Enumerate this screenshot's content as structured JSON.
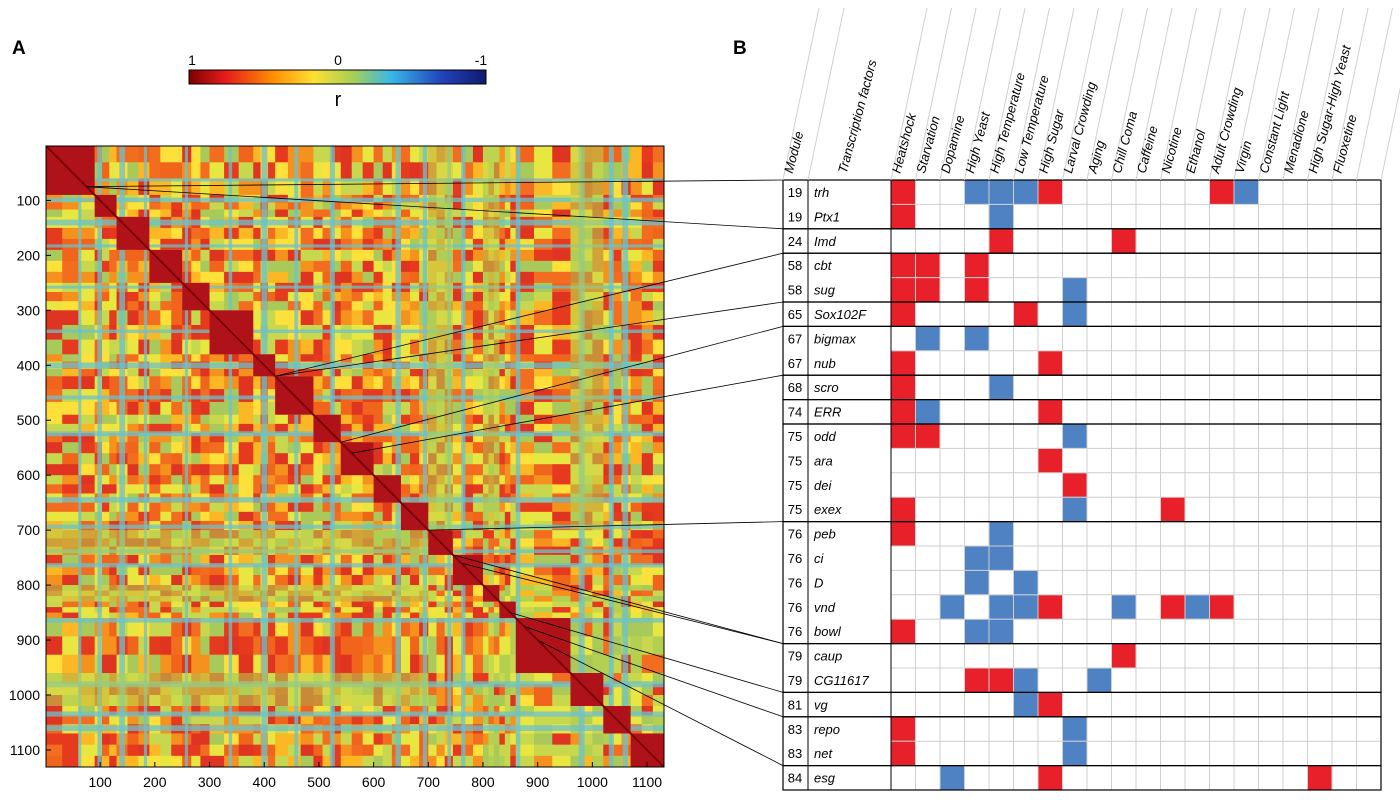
{
  "panel_a_label": "A",
  "panel_b_label": "B",
  "colorbar": {
    "label": "r",
    "tick_labels": [
      "1",
      "0",
      "-1"
    ],
    "range": [
      1,
      -1
    ]
  },
  "chart_data": [
    {
      "type": "heatmap",
      "title": "",
      "xlabel": "",
      "ylabel": "",
      "xlim": [
        1,
        1131
      ],
      "ylim": [
        1,
        1131
      ],
      "x_ticks": [
        100,
        200,
        300,
        400,
        500,
        600,
        700,
        800,
        900,
        1000,
        1100
      ],
      "y_ticks": [
        100,
        200,
        300,
        400,
        500,
        600,
        700,
        800,
        900,
        1000,
        1100
      ],
      "colormap": "jet reversed (1 = dark red, 0 = yellow/green, -1 = dark blue)",
      "diagonal_blocks": [
        [
          1,
          90
        ],
        [
          90,
          130
        ],
        [
          130,
          190
        ],
        [
          190,
          250
        ],
        [
          250,
          300
        ],
        [
          300,
          380
        ],
        [
          380,
          420
        ],
        [
          420,
          490
        ],
        [
          490,
          540
        ],
        [
          540,
          600
        ],
        [
          600,
          650
        ],
        [
          650,
          700
        ],
        [
          700,
          745
        ],
        [
          745,
          800
        ],
        [
          800,
          830
        ],
        [
          830,
          860
        ],
        [
          860,
          960
        ],
        [
          960,
          1020
        ],
        [
          1020,
          1070
        ],
        [
          1070,
          1131
        ]
      ]
    },
    {
      "type": "table",
      "columns": [
        "Module",
        "Transcription factors",
        "Heatshock",
        "Starvation",
        "Dopamine",
        "High Yeast",
        "High Temperature",
        "Low Temperature",
        "High Sugar",
        "Larval Crowding",
        "Aging",
        "Chill Coma",
        "Caffeine",
        "Nicotine",
        "Ethanol",
        "Adult Crowding",
        "Virgin",
        "Constant Light",
        "Menadione",
        "High Sugar-High Yeast",
        "Fluoxetine"
      ],
      "legend": {
        "red": "#e8202a",
        "blue": "#4f82c3"
      },
      "rows": [
        {
          "module": "19",
          "tf": "trh",
          "red": [
            0,
            6,
            13
          ],
          "blue": [
            3,
            4,
            5,
            14
          ]
        },
        {
          "module": "19",
          "tf": "Ptx1",
          "red": [
            0
          ],
          "blue": [
            4
          ]
        },
        {
          "module": "24",
          "tf": "Imd",
          "red": [
            4,
            9
          ],
          "blue": []
        },
        {
          "module": "58",
          "tf": "cbt",
          "red": [
            0,
            1,
            3
          ],
          "blue": []
        },
        {
          "module": "58",
          "tf": "sug",
          "red": [
            0,
            1,
            3
          ],
          "blue": [
            7
          ]
        },
        {
          "module": "65",
          "tf": "Sox102F",
          "red": [
            0,
            5
          ],
          "blue": [
            7
          ]
        },
        {
          "module": "67",
          "tf": "bigmax",
          "red": [],
          "blue": [
            1,
            3
          ]
        },
        {
          "module": "67",
          "tf": "nub",
          "red": [
            0,
            6
          ],
          "blue": []
        },
        {
          "module": "68",
          "tf": "scro",
          "red": [
            0
          ],
          "blue": [
            4
          ]
        },
        {
          "module": "74",
          "tf": "ERR",
          "red": [
            0,
            6
          ],
          "blue": [
            1
          ]
        },
        {
          "module": "75",
          "tf": "odd",
          "red": [
            0,
            1
          ],
          "blue": [
            7
          ]
        },
        {
          "module": "75",
          "tf": "ara",
          "red": [
            6
          ],
          "blue": []
        },
        {
          "module": "75",
          "tf": "dei",
          "red": [
            7
          ],
          "blue": []
        },
        {
          "module": "75",
          "tf": "exex",
          "red": [
            0,
            11
          ],
          "blue": [
            7
          ]
        },
        {
          "module": "76",
          "tf": "peb",
          "red": [
            0
          ],
          "blue": [
            4
          ]
        },
        {
          "module": "76",
          "tf": "ci",
          "red": [],
          "blue": [
            3,
            4
          ]
        },
        {
          "module": "76",
          "tf": "D",
          "red": [],
          "blue": [
            3,
            5
          ]
        },
        {
          "module": "76",
          "tf": "vnd",
          "red": [
            6,
            11,
            13
          ],
          "blue": [
            2,
            4,
            5,
            9,
            12
          ]
        },
        {
          "module": "76",
          "tf": "bowl",
          "red": [
            0
          ],
          "blue": [
            3,
            4
          ]
        },
        {
          "module": "79",
          "tf": "caup",
          "red": [
            9
          ],
          "blue": []
        },
        {
          "module": "79",
          "tf": "CG11617",
          "red": [
            3,
            4
          ],
          "blue": [
            5,
            8
          ]
        },
        {
          "module": "81",
          "tf": "vg",
          "red": [
            6
          ],
          "blue": [
            5
          ]
        },
        {
          "module": "83",
          "tf": "repo",
          "red": [
            0
          ],
          "blue": [
            7
          ]
        },
        {
          "module": "83",
          "tf": "net",
          "red": [
            0
          ],
          "blue": [
            7
          ]
        },
        {
          "module": "84",
          "tf": "esg",
          "red": [
            6,
            17
          ],
          "blue": [
            2
          ]
        }
      ],
      "module_groups": [
        [
          0,
          2
        ],
        [
          2,
          3
        ],
        [
          3,
          5
        ],
        [
          5,
          6
        ],
        [
          6,
          8
        ],
        [
          8,
          9
        ],
        [
          9,
          10
        ],
        [
          10,
          14
        ],
        [
          14,
          19
        ],
        [
          19,
          21
        ],
        [
          21,
          22
        ],
        [
          22,
          24
        ],
        [
          24,
          25
        ]
      ]
    }
  ]
}
